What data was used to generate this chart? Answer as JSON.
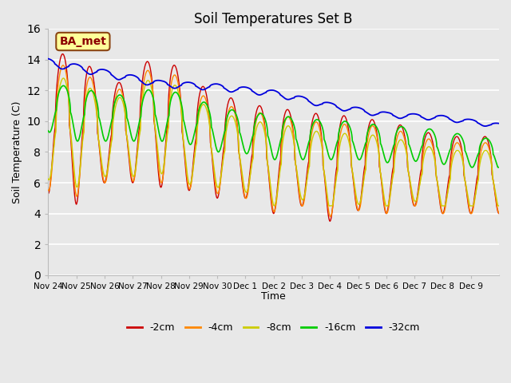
{
  "title": "Soil Temperatures Set B",
  "xlabel": "Time",
  "ylabel": "Soil Temperature (C)",
  "ylim": [
    0,
    16
  ],
  "yticks": [
    0,
    2,
    4,
    6,
    8,
    10,
    12,
    14,
    16
  ],
  "bg_color": "#e8e8e8",
  "annotation_text": "BA_met",
  "annotation_bg": "#ffff99",
  "annotation_border": "#8b4513",
  "annotation_text_color": "#8b0000",
  "colors": {
    "-2cm": "#cc0000",
    "-4cm": "#ff8800",
    "-8cm": "#cccc00",
    "-16cm": "#00cc00",
    "-32cm": "#0000dd"
  },
  "xtick_labels": [
    "Nov 24",
    "Nov 25",
    "Nov 26",
    "Nov 27",
    "Nov 28",
    "Nov 29",
    "Nov 30",
    "Dec 1",
    "Dec 2",
    "Dec 3",
    "Dec 4",
    "Dec 5",
    "Dec 6",
    "Dec 7",
    "Dec 8",
    "Dec 9"
  ],
  "n_days": 16,
  "figsize": [
    6.4,
    4.8
  ],
  "dpi": 100
}
